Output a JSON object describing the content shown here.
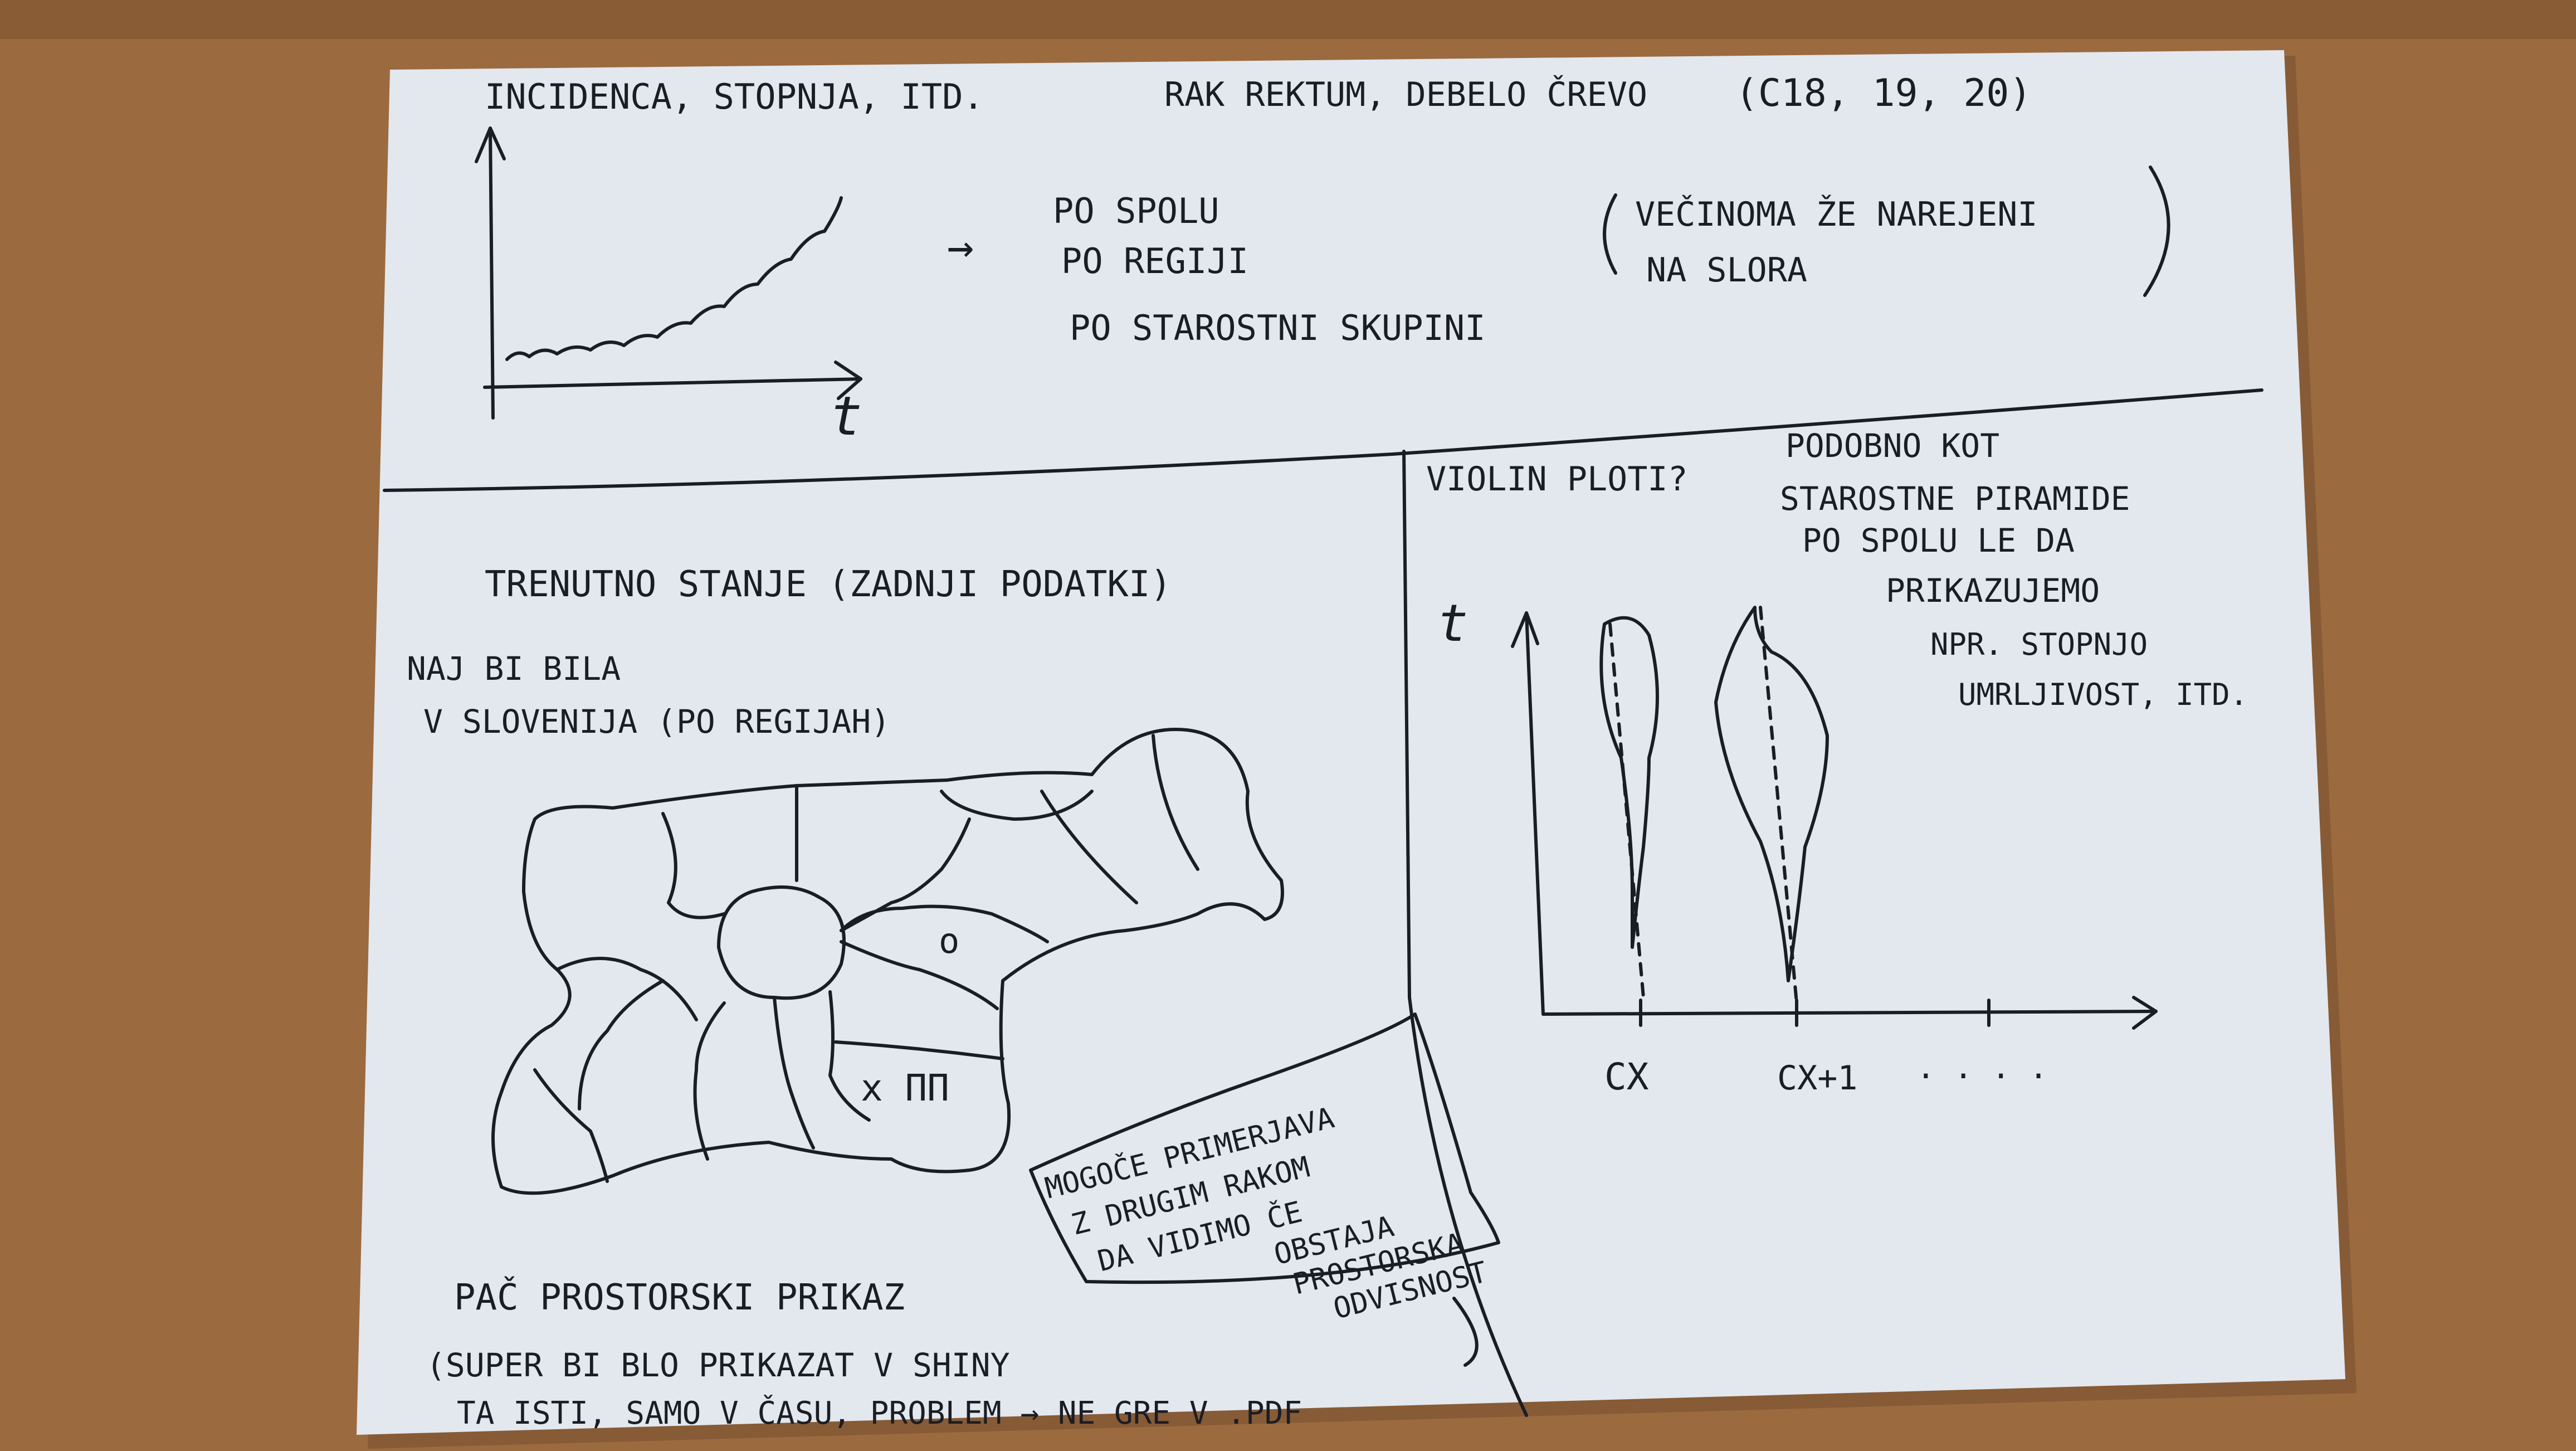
{
  "colors": {
    "table": "#9c6a3f",
    "paper": "#e3e7ee",
    "ink": "#1b1d24"
  },
  "top_section": {
    "chart_title": "INCIDENCA, STOPNJA, ITD.",
    "axis_t": "t",
    "arrow": "→",
    "breakdown": [
      "PO SPOLU",
      "PO REGIJI",
      "PO STAROSTNI SKUPINI"
    ],
    "topic": "RAK REKTUM, DEBELO ČREVO",
    "codes": "(C18, 19, 20)",
    "note_line1": "VEČINOMA ŽE NAREJENI",
    "note_line2": "NA SLORA"
  },
  "map_section": {
    "title": "TRENUTNO STANJE (ZADNJI PODATKI)",
    "note_line1": "NAJ BI BILA",
    "note_line2": "V SLOVENIJA (PO REGIJAH)",
    "region_mark_o": "o",
    "region_mark_x": "x ΠΠ",
    "caption": "PAČ PROSTORSKI PRIKAZ",
    "footer_line1": "(SUPER BI BLO PRIKAZAT V SHINY",
    "footer_line2": "TA ISTI, SAMO V ČASU, PROBLEM → NE GRE V .PDF",
    "box_lines": [
      "MOGOČE PRIMERJAVA",
      "Z DRUGIM RAKOM",
      "DA VIDIMO ČE",
      "OBSTAJA",
      "PROSTORSKA",
      "ODVISNOST"
    ]
  },
  "violin_section": {
    "title": "VIOLIN PLOTI?",
    "axis_t": "t",
    "x_label_1": "CX",
    "x_label_2": "CX+1",
    "x_label_more": ". . . .",
    "note_lines": [
      "PODOBNO KOT",
      "STAROSTNE PIRAMIDE",
      "PO SPOLU LE DA",
      "PRIKAZUJEMO",
      "NPR. STOPNJO",
      "UMRLJIVOST, ITD."
    ]
  }
}
